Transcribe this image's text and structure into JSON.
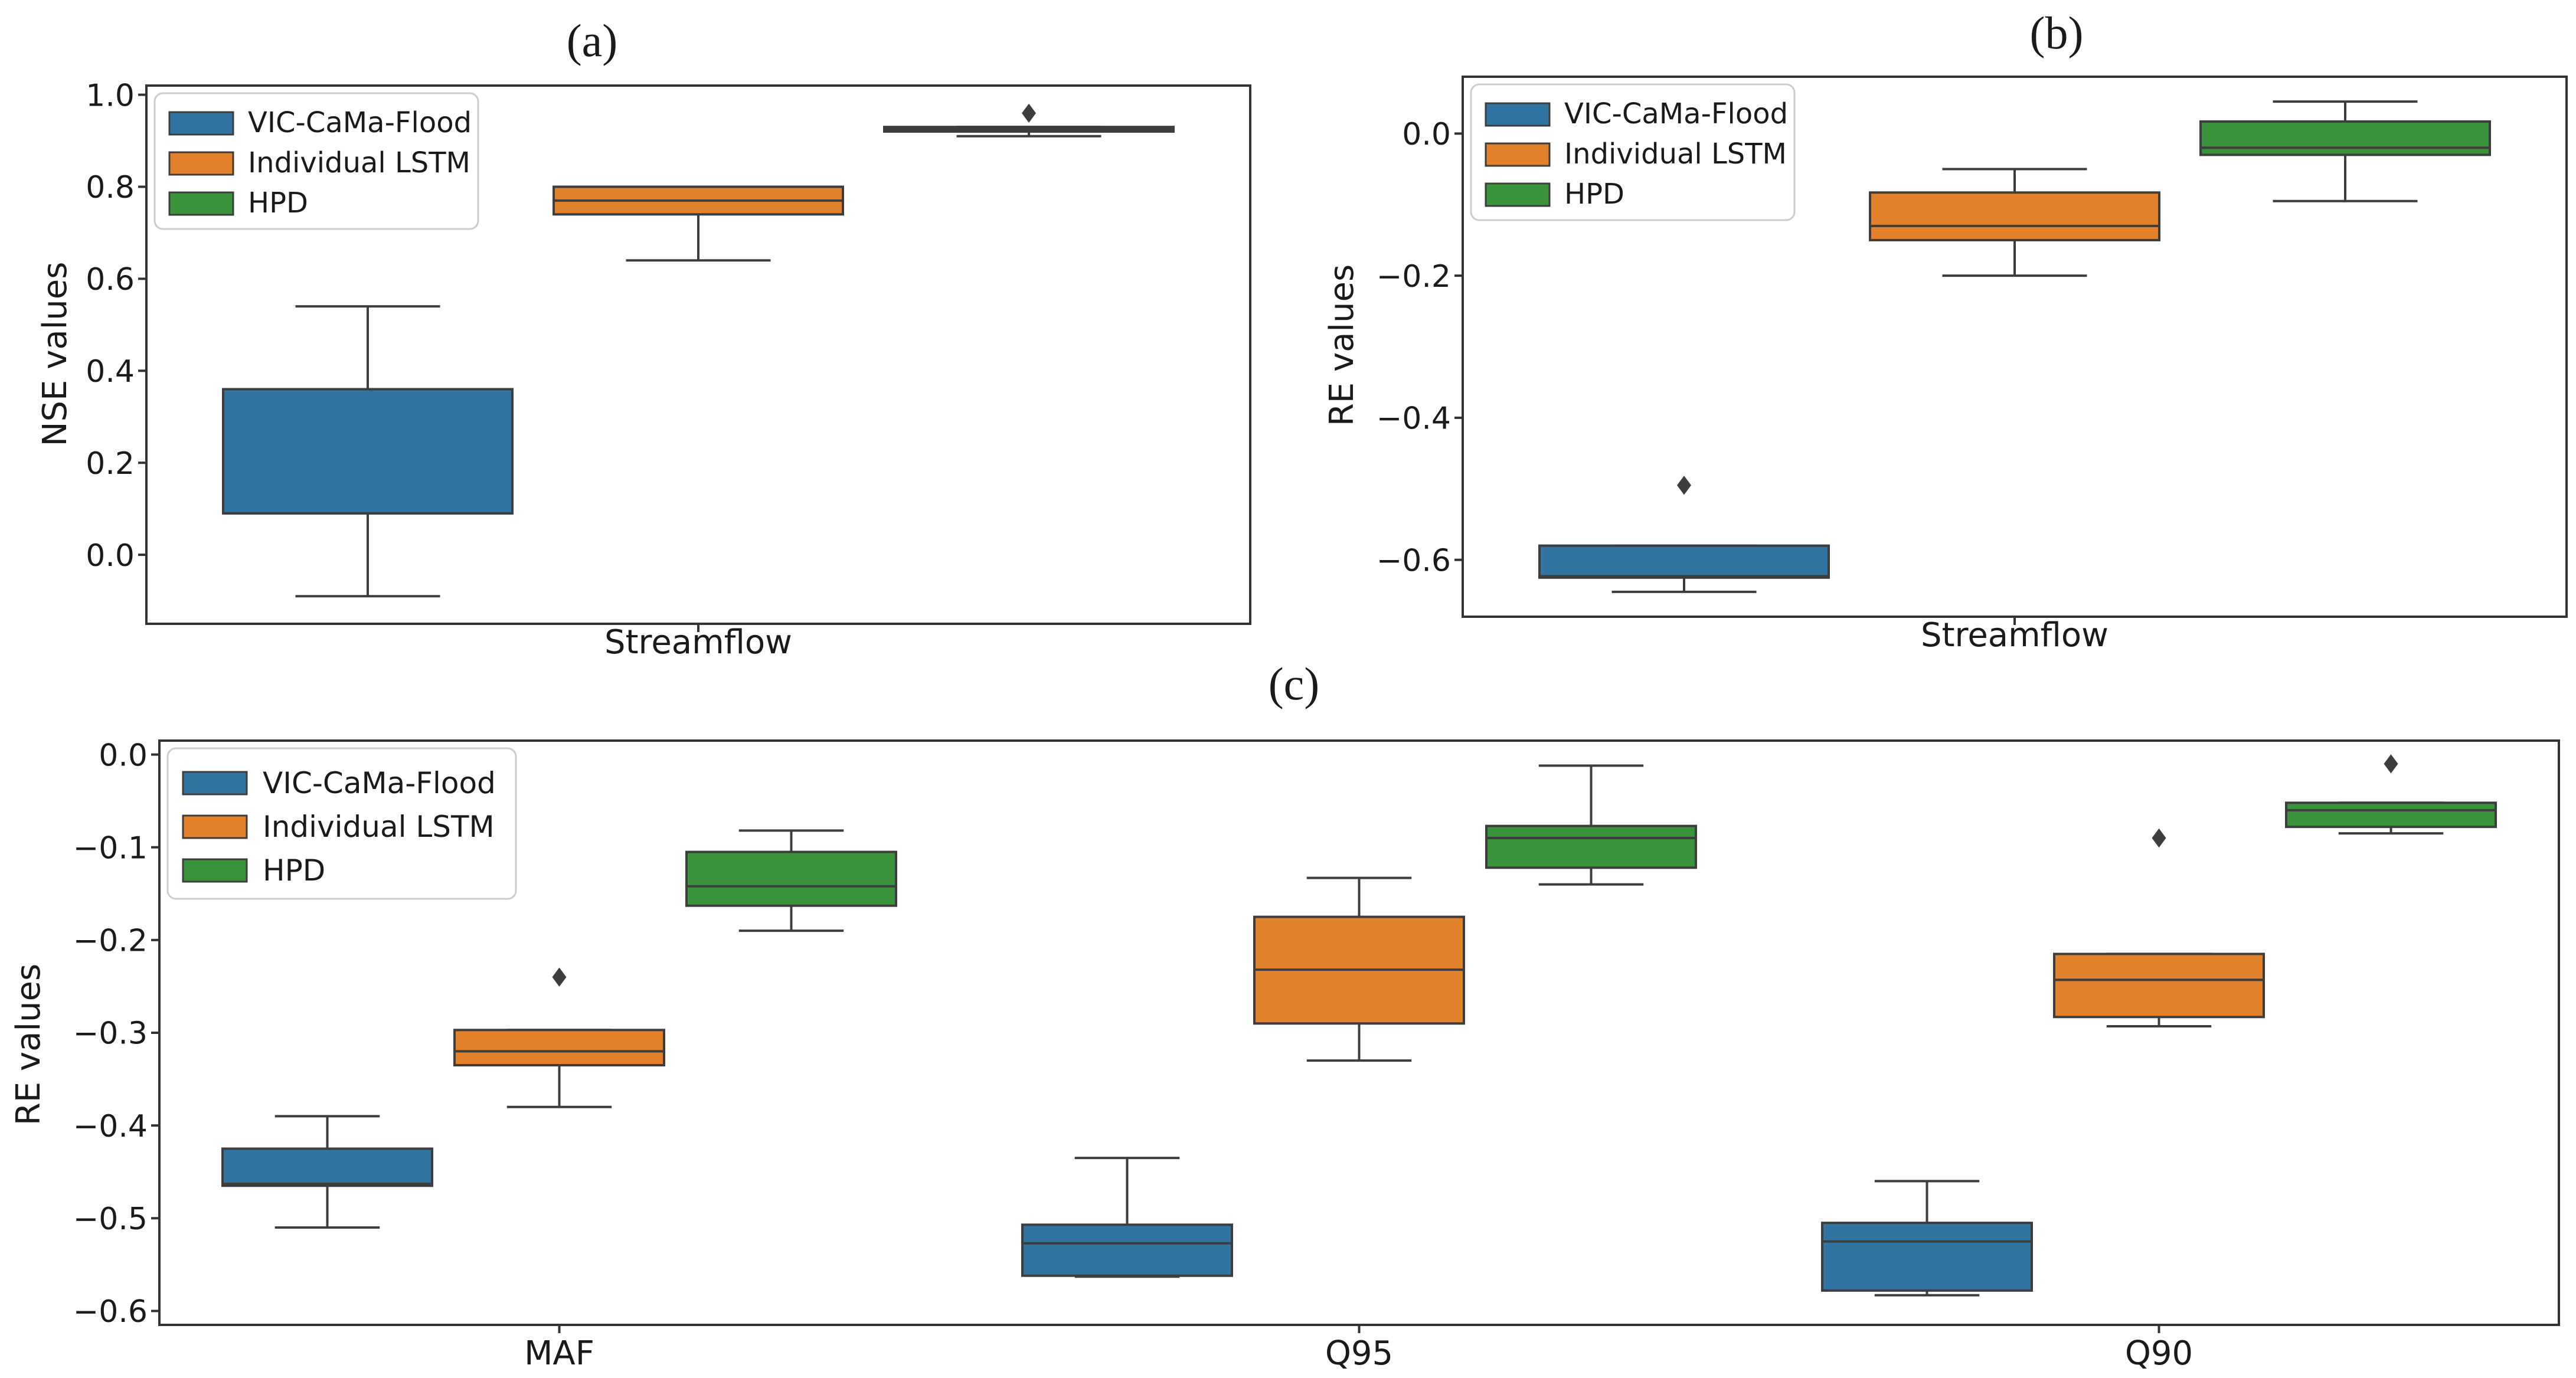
{
  "chart_data": [
    {
      "type": "box",
      "panel_label": "(a)",
      "xlabel": "Streamflow",
      "ylabel": "NSE values",
      "categories": [
        "Streamflow"
      ],
      "ylim": [
        -0.15,
        1.02
      ],
      "yticks": [
        0.0,
        0.2,
        0.4,
        0.6,
        0.8,
        1.0
      ],
      "ytick_labels": [
        "0.0",
        "0.2",
        "0.4",
        "0.6",
        "0.8",
        "1.0"
      ],
      "legend": {
        "position": "top-left",
        "entries": [
          "VIC-CaMa-Flood",
          "Individual LSTM",
          "HPD"
        ]
      },
      "series": [
        {
          "name": "VIC-CaMa-Flood",
          "color": "#3274a1",
          "boxes": [
            {
              "whislo": -0.09,
              "q1": 0.09,
              "med": 0.09,
              "q3": 0.36,
              "whishi": 0.54,
              "fliers": []
            }
          ]
        },
        {
          "name": "Individual LSTM",
          "color": "#e1812c",
          "boxes": [
            {
              "whislo": 0.64,
              "q1": 0.74,
              "med": 0.77,
              "q3": 0.8,
              "whishi": 0.8,
              "fliers": []
            }
          ]
        },
        {
          "name": "HPD",
          "color": "#3a923a",
          "boxes": [
            {
              "whislo": 0.91,
              "q1": 0.92,
              "med": 0.925,
              "q3": 0.93,
              "whishi": 0.93,
              "fliers": [
                0.96
              ]
            }
          ]
        }
      ]
    },
    {
      "type": "box",
      "panel_label": "(b)",
      "xlabel": "Streamflow",
      "ylabel": "RE values",
      "categories": [
        "Streamflow"
      ],
      "ylim": [
        -0.68,
        0.08
      ],
      "yticks": [
        -0.6,
        -0.4,
        -0.2,
        0.0
      ],
      "ytick_labels": [
        "−0.6",
        "−0.4",
        "−0.2",
        "0.0"
      ],
      "legend": {
        "position": "top-left",
        "entries": [
          "VIC-CaMa-Flood",
          "Individual LSTM",
          "HPD"
        ]
      },
      "series": [
        {
          "name": "VIC-CaMa-Flood",
          "color": "#3274a1",
          "boxes": [
            {
              "whislo": -0.645,
              "q1": -0.625,
              "med": -0.623,
              "q3": -0.58,
              "whishi": -0.58,
              "fliers": [
                -0.495
              ]
            }
          ]
        },
        {
          "name": "Individual LSTM",
          "color": "#e1812c",
          "boxes": [
            {
              "whislo": -0.2,
              "q1": -0.15,
              "med": -0.13,
              "q3": -0.083,
              "whishi": -0.05,
              "fliers": []
            }
          ]
        },
        {
          "name": "HPD",
          "color": "#3a923a",
          "boxes": [
            {
              "whislo": -0.095,
              "q1": -0.03,
              "med": -0.02,
              "q3": 0.017,
              "whishi": 0.045,
              "fliers": []
            }
          ]
        }
      ]
    },
    {
      "type": "box",
      "panel_label": "(c)",
      "xlabel": "",
      "ylabel": "RE values",
      "categories": [
        "MAF",
        "Q95",
        "Q90"
      ],
      "ylim": [
        -0.615,
        0.015
      ],
      "yticks": [
        -0.6,
        -0.5,
        -0.4,
        -0.3,
        -0.2,
        -0.1,
        0.0
      ],
      "ytick_labels": [
        "−0.6",
        "−0.5",
        "−0.4",
        "−0.3",
        "−0.2",
        "−0.1",
        "0.0"
      ],
      "legend": {
        "position": "top-left",
        "entries": [
          "VIC-CaMa-Flood",
          "Individual LSTM",
          "HPD"
        ]
      },
      "series": [
        {
          "name": "VIC-CaMa-Flood",
          "color": "#3274a1",
          "boxes": [
            {
              "whislo": -0.51,
              "q1": -0.465,
              "med": -0.463,
              "q3": -0.425,
              "whishi": -0.39,
              "fliers": []
            },
            {
              "whislo": -0.563,
              "q1": -0.562,
              "med": -0.527,
              "q3": -0.507,
              "whishi": -0.435,
              "fliers": []
            },
            {
              "whislo": -0.583,
              "q1": -0.578,
              "med": -0.525,
              "q3": -0.505,
              "whishi": -0.46,
              "fliers": []
            }
          ]
        },
        {
          "name": "Individual LSTM",
          "color": "#e1812c",
          "boxes": [
            {
              "whislo": -0.38,
              "q1": -0.335,
              "med": -0.32,
              "q3": -0.297,
              "whishi": -0.297,
              "fliers": [
                -0.24
              ]
            },
            {
              "whislo": -0.33,
              "q1": -0.29,
              "med": -0.232,
              "q3": -0.175,
              "whishi": -0.133,
              "fliers": []
            },
            {
              "whislo": -0.293,
              "q1": -0.283,
              "med": -0.243,
              "q3": -0.215,
              "whishi": -0.215,
              "fliers": [
                -0.09
              ]
            }
          ]
        },
        {
          "name": "HPD",
          "color": "#3a923a",
          "boxes": [
            {
              "whislo": -0.19,
              "q1": -0.163,
              "med": -0.142,
              "q3": -0.105,
              "whishi": -0.082,
              "fliers": []
            },
            {
              "whislo": -0.14,
              "q1": -0.122,
              "med": -0.09,
              "q3": -0.077,
              "whishi": -0.012,
              "fliers": []
            },
            {
              "whislo": -0.085,
              "q1": -0.078,
              "med": -0.06,
              "q3": -0.052,
              "whishi": -0.052,
              "fliers": [
                -0.01
              ]
            }
          ]
        }
      ]
    }
  ]
}
